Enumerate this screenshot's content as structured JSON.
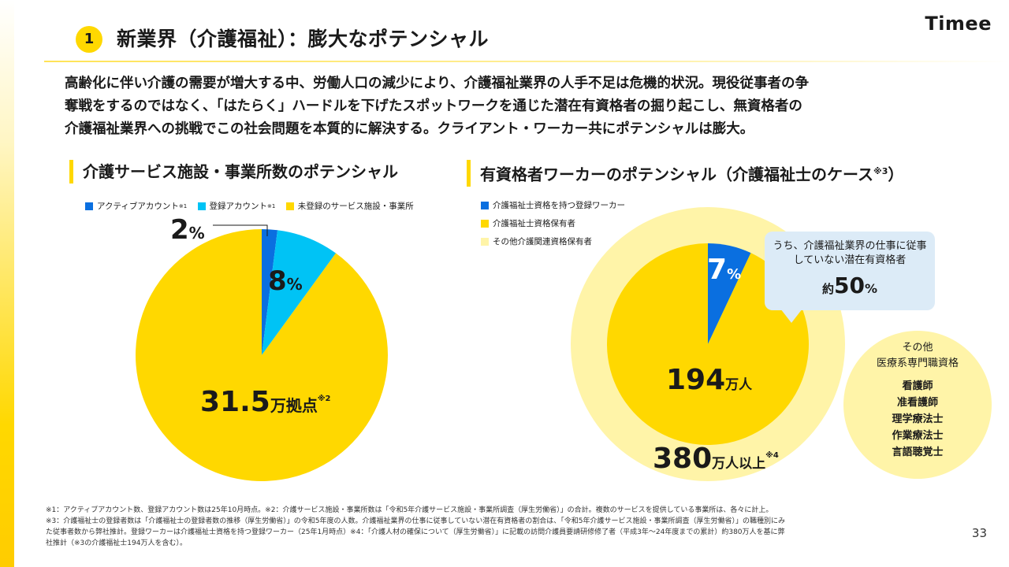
{
  "header": {
    "section_number": "1",
    "title": "新業界（介護福祉）：膨大なポテンシャル",
    "logo": "Timee"
  },
  "intro": [
    "高齢化に伴い介護の需要が増大する中、労働人口の減少により、介護福祉業界の人手不足は危機的状況。現役従事者の争",
    "奪戦をするのではなく、「はたらく」ハードルを下げたスポットワークを通じた潜在有資格者の掘り起こし、無資格者の",
    "介護福祉業界への挑戦でこの社会問題を本質的に解決する。クライアント・ワーカー共にポテンシャルは膨大。"
  ],
  "colors": {
    "accent_yellow": "#ffd800",
    "blue": "#0a6fe0",
    "cyan": "#00c3f5",
    "light_yellow": "#fff4a8",
    "callout_blue": "#dcebf7"
  },
  "left_section": {
    "title": "介護サービス施設・事業所数のポテンシャル",
    "legend": [
      {
        "label": "アクティブアカウント",
        "sup": "※1",
        "color": "#0a6fe0"
      },
      {
        "label": "登録アカウント",
        "sup": "※1",
        "color": "#00c3f5"
      },
      {
        "label": "未登録のサービス施設・事業所",
        "sup": "",
        "color": "#ffd800"
      }
    ]
  },
  "right_section": {
    "title": "有資格者ワーカーのポテンシャル（介護福祉士のケース",
    "title_sup": "※3",
    "title_end": "）",
    "legend": [
      {
        "label": "介護福祉士資格を持つ登録ワーカー",
        "color": "#0a6fe0"
      },
      {
        "label": "介護福祉士資格保有者",
        "color": "#ffd800"
      },
      {
        "label": "その他介護関連資格保有者",
        "color": "#fff4a8"
      }
    ],
    "callout": {
      "line1": "うち、介護福祉業界の仕事に従事",
      "line2": "していない潜在有資格者",
      "prefix": "約",
      "value": "50",
      "unit": "%"
    },
    "other": {
      "title_line1": "その他",
      "title_line2": "医療系専門職資格",
      "items": [
        "看護師",
        "准看護師",
        "理学療法士",
        "作業療法士",
        "言語聴覚士"
      ]
    }
  },
  "chart_data": [
    {
      "type": "pie",
      "title": "介護サービス施設・事業所数のポテンシャル",
      "series": [
        {
          "name": "アクティブアカウント",
          "value": 2,
          "unit": "%"
        },
        {
          "name": "登録アカウント",
          "value": 8,
          "unit": "%"
        },
        {
          "name": "未登録のサービス施設・事業所",
          "value": 90
        }
      ],
      "labels": {
        "active": {
          "value": "2",
          "unit": "%"
        },
        "registered": {
          "value": "8",
          "unit": "%"
        },
        "total": {
          "value": "31.5",
          "unit": "万拠点",
          "note": "※2"
        }
      }
    },
    {
      "type": "pie",
      "title": "有資格者ワーカーのポテンシャル（介護福祉士のケース※3）",
      "series": [
        {
          "name": "介護福祉士資格を持つ登録ワーカー",
          "value": 7,
          "unit": "%"
        },
        {
          "name": "介護福祉士資格保有者",
          "value": 93
        }
      ],
      "inner_total": {
        "value": "194",
        "unit": "万人"
      },
      "outer_total": {
        "name": "その他介護関連資格保有者",
        "value": "380",
        "unit": "万人以上",
        "note": "※4"
      },
      "labels": {
        "registered": {
          "value": "7",
          "unit": "%"
        }
      }
    }
  ],
  "footnotes": [
    "※1：アクティブアカウント数、登録アカウント数は25年10月時点。※2：介護サービス施設・事業所数は「令和5年介護サービス施設・事業所調査（厚生労働省）」の合計。複数のサービスを提供している事業所は、各々に計上。",
    "※3：介護福祉士の登録者数は「介護福祉士の登録者数の推移（厚生労働省）」の令和5年度の人数。介護福祉業界の仕事に従事していない潜在有資格者の割合は、「令和5年介護サービス施設・事業所調査（厚生労働省）」の職種別にみ",
    "た従事者数から弊社推計。登録ワーカーは介護福祉士資格を持つ登録ワーカー（25年1月時点）※4：「介護人材の確保について（厚生労働省）」に記載の訪問介護員要請研修修了者（平成3年〜24年度までの累計）約380万人を基に弊",
    "社推計（※3の介護福祉士194万人を含む）。"
  ],
  "page_number": "33"
}
